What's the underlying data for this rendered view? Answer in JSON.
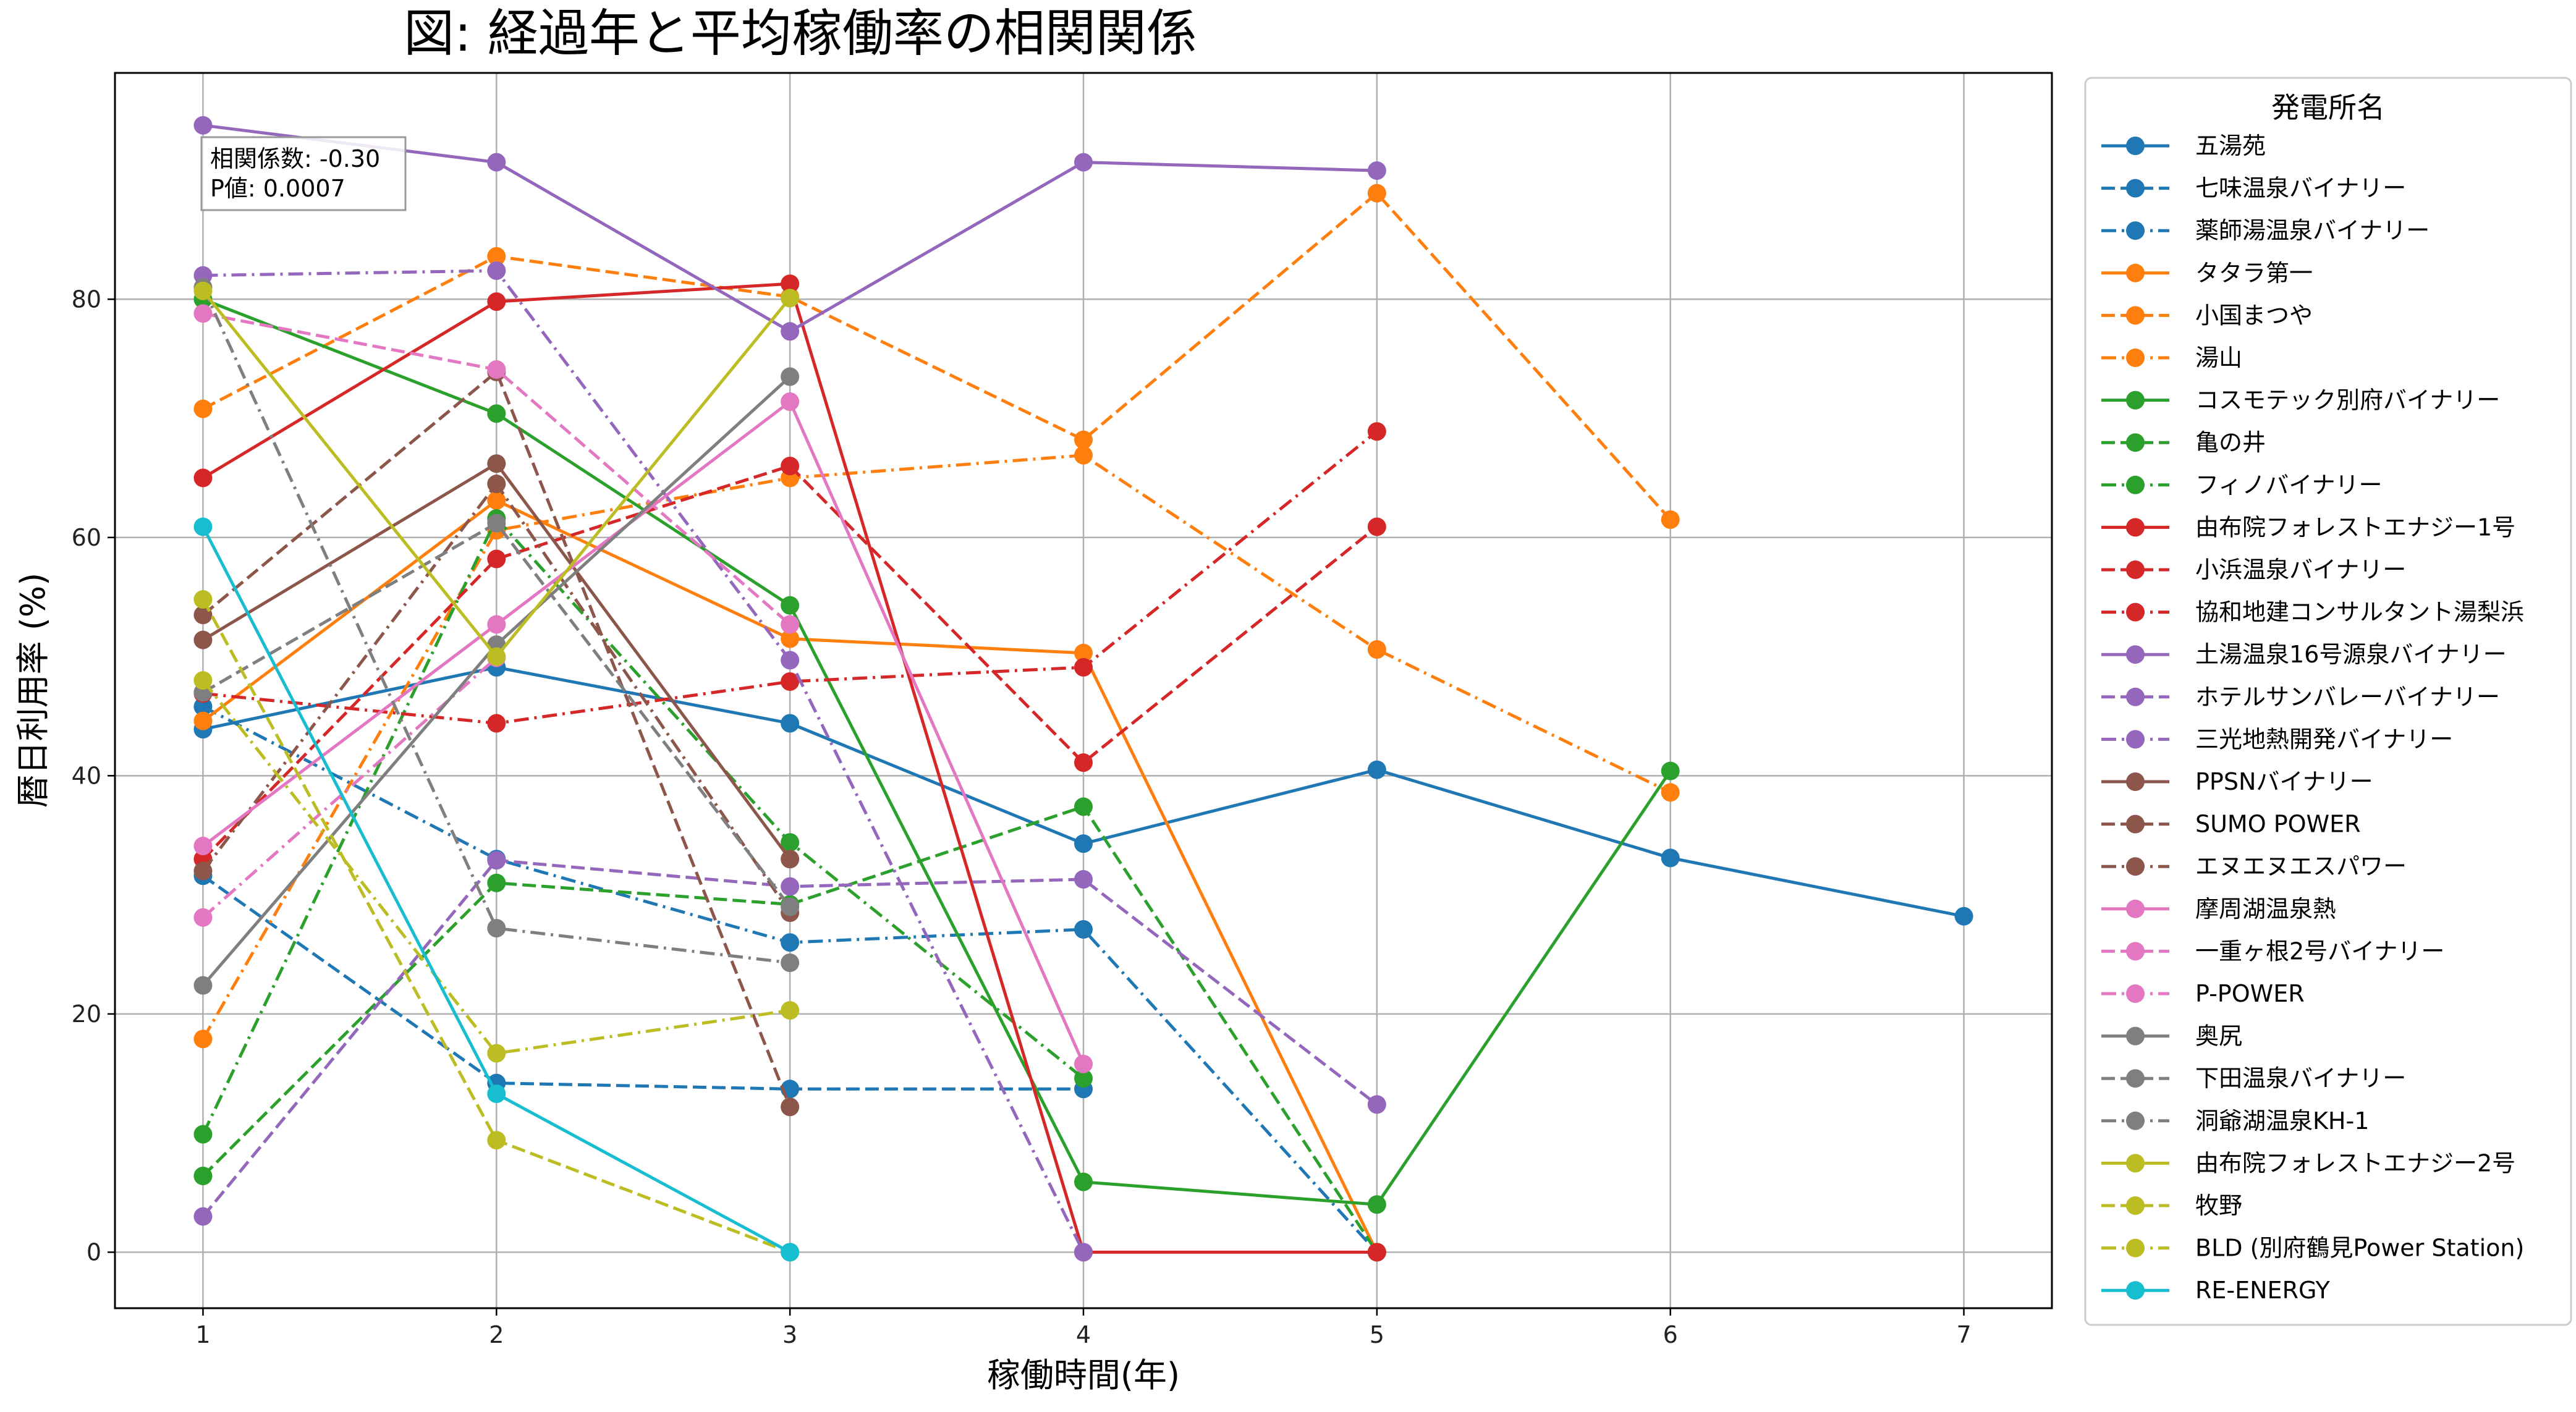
{
  "chart_data": {
    "type": "line",
    "title": "図: 経過年と平均稼働率の相関関係",
    "xlabel": "稼働時間(年)",
    "ylabel": "暦日利用率 (%)",
    "xlim": [
      0.7,
      7.3
    ],
    "ylim": [
      -4.7,
      99
    ],
    "xticks": [
      1,
      2,
      3,
      4,
      5,
      6,
      7
    ],
    "yticks": [
      0,
      20,
      40,
      60,
      80
    ],
    "grid": true,
    "legend_title": "発電所名",
    "legend_position": "outside-right",
    "annotation": {
      "line1": "相関係数: -0.30",
      "line2": "P値: 0.0007"
    },
    "series": [
      {
        "name": "五湯苑",
        "color": "#1f77b4",
        "dash": "solid",
        "points": [
          [
            1,
            43.9
          ],
          [
            2,
            49.1
          ],
          [
            3,
            44.4
          ],
          [
            4,
            34.3
          ],
          [
            5,
            40.5
          ],
          [
            6,
            33.1
          ],
          [
            7,
            28.2
          ]
        ]
      },
      {
        "name": "七味温泉バイナリー",
        "color": "#1f77b4",
        "dash": "dashed",
        "points": [
          [
            1,
            31.6
          ],
          [
            2,
            14.2
          ],
          [
            3,
            13.7
          ],
          [
            4,
            13.7
          ]
        ]
      },
      {
        "name": "薬師湯温泉バイナリー",
        "color": "#1f77b4",
        "dash": "dashdot",
        "points": [
          [
            1,
            45.8
          ],
          [
            2,
            33.0
          ],
          [
            3,
            26.0
          ],
          [
            4,
            27.1
          ],
          [
            5,
            0
          ]
        ]
      },
      {
        "name": "タタラ第一",
        "color": "#ff7f0e",
        "dash": "solid",
        "points": [
          [
            1,
            44.6
          ],
          [
            2,
            63.1
          ],
          [
            3,
            51.5
          ],
          [
            4,
            50.3
          ],
          [
            5,
            0
          ]
        ]
      },
      {
        "name": "小国まつや",
        "color": "#ff7f0e",
        "dash": "dashed",
        "points": [
          [
            1,
            70.8
          ],
          [
            2,
            83.6
          ],
          [
            3,
            80.2
          ],
          [
            4,
            68.2
          ],
          [
            5,
            88.9
          ],
          [
            6,
            61.5
          ]
        ]
      },
      {
        "name": "湯山",
        "color": "#ff7f0e",
        "dash": "dashdot",
        "points": [
          [
            1,
            17.9
          ],
          [
            2,
            60.6
          ],
          [
            3,
            65.0
          ],
          [
            4,
            66.9
          ],
          [
            5,
            50.6
          ],
          [
            6,
            38.6
          ]
        ]
      },
      {
        "name": "コスモテック別府バイナリー",
        "color": "#2ca02c",
        "dash": "solid",
        "points": [
          [
            1,
            80.0
          ],
          [
            2,
            70.4
          ],
          [
            3,
            54.3
          ],
          [
            4,
            5.9
          ],
          [
            5,
            4.0
          ],
          [
            6,
            40.4
          ]
        ]
      },
      {
        "name": "亀の井",
        "color": "#2ca02c",
        "dash": "dashed",
        "points": [
          [
            1,
            6.4
          ],
          [
            2,
            31.0
          ],
          [
            3,
            29.2
          ],
          [
            4,
            37.4
          ],
          [
            5,
            0
          ]
        ]
      },
      {
        "name": "フィノバイナリー",
        "color": "#2ca02c",
        "dash": "dashdot",
        "points": [
          [
            1,
            9.9
          ],
          [
            2,
            61.6
          ],
          [
            3,
            34.4
          ],
          [
            4,
            14.6
          ]
        ]
      },
      {
        "name": "由布院フォレストエナジー1号",
        "color": "#d62728",
        "dash": "solid",
        "points": [
          [
            1,
            65.0
          ],
          [
            2,
            79.8
          ],
          [
            3,
            81.3
          ],
          [
            4,
            0
          ],
          [
            5,
            0
          ]
        ]
      },
      {
        "name": "小浜温泉バイナリー",
        "color": "#d62728",
        "dash": "dashed",
        "points": [
          [
            1,
            33.0
          ],
          [
            2,
            58.2
          ],
          [
            3,
            66.0
          ],
          [
            4,
            41.1
          ],
          [
            5,
            60.9
          ]
        ]
      },
      {
        "name": "協和地建コンサルタント湯梨浜",
        "color": "#d62728",
        "dash": "dashdot",
        "points": [
          [
            1,
            46.9
          ],
          [
            2,
            44.4
          ],
          [
            3,
            47.9
          ],
          [
            4,
            49.1
          ],
          [
            5,
            68.9
          ]
        ]
      },
      {
        "name": "土湯温泉16号源泉バイナリー",
        "color": "#9467bd",
        "dash": "solid",
        "points": [
          [
            1,
            94.6
          ],
          [
            2,
            91.5
          ],
          [
            3,
            77.3
          ],
          [
            4,
            91.5
          ],
          [
            5,
            90.8
          ]
        ]
      },
      {
        "name": "ホテルサンバレーバイナリー",
        "color": "#9467bd",
        "dash": "dashed",
        "points": [
          [
            1,
            3.0
          ],
          [
            2,
            32.9
          ],
          [
            3,
            30.7
          ],
          [
            4,
            31.3
          ],
          [
            5,
            12.4
          ]
        ]
      },
      {
        "name": "三光地熱開発バイナリー",
        "color": "#9467bd",
        "dash": "dashdot",
        "points": [
          [
            1,
            82.0
          ],
          [
            2,
            82.4
          ],
          [
            3,
            49.7
          ],
          [
            4,
            0
          ]
        ]
      },
      {
        "name": "PPSNバイナリー",
        "color": "#8c564b",
        "dash": "solid",
        "points": [
          [
            1,
            51.4
          ],
          [
            2,
            66.2
          ],
          [
            3,
            33.0
          ]
        ]
      },
      {
        "name": "SUMO POWER",
        "color": "#8c564b",
        "dash": "dashed",
        "points": [
          [
            1,
            53.5
          ],
          [
            2,
            73.9
          ],
          [
            3,
            12.2
          ]
        ]
      },
      {
        "name": "エヌエヌエスパワー",
        "color": "#8c564b",
        "dash": "dashdot",
        "points": [
          [
            1,
            32.0
          ],
          [
            2,
            64.5
          ],
          [
            3,
            28.5
          ]
        ]
      },
      {
        "name": "摩周湖温泉熱",
        "color": "#e377c2",
        "dash": "solid",
        "points": [
          [
            1,
            34.1
          ],
          [
            2,
            52.7
          ],
          [
            3,
            71.4
          ],
          [
            4,
            15.8
          ]
        ]
      },
      {
        "name": "一重ヶ根2号バイナリー",
        "color": "#e377c2",
        "dash": "dashed",
        "points": [
          [
            1,
            78.8
          ],
          [
            2,
            74.1
          ],
          [
            3,
            52.7
          ]
        ]
      },
      {
        "name": "P-POWER",
        "color": "#e377c2",
        "dash": "dashdot",
        "points": [
          [
            1,
            28.1
          ],
          [
            2,
            49.9
          ]
        ]
      },
      {
        "name": "奥尻",
        "color": "#7f7f7f",
        "dash": "solid",
        "points": [
          [
            1,
            22.4
          ],
          [
            2,
            51.0
          ],
          [
            3,
            73.5
          ]
        ]
      },
      {
        "name": "下田温泉バイナリー",
        "color": "#7f7f7f",
        "dash": "dashed",
        "points": [
          [
            1,
            47.0
          ],
          [
            2,
            61.2
          ],
          [
            3,
            29.0
          ]
        ]
      },
      {
        "name": "洞爺湖温泉KH-1",
        "color": "#7f7f7f",
        "dash": "dashdot",
        "points": [
          [
            1,
            81.0
          ],
          [
            2,
            27.2
          ],
          [
            3,
            24.3
          ]
        ]
      },
      {
        "name": "由布院フォレストエナジー2号",
        "color": "#bcbd22",
        "dash": "solid",
        "points": [
          [
            1,
            80.7
          ],
          [
            2,
            50.0
          ],
          [
            3,
            80.1
          ]
        ]
      },
      {
        "name": "牧野",
        "color": "#bcbd22",
        "dash": "dashed",
        "points": [
          [
            1,
            54.8
          ],
          [
            2,
            9.4
          ],
          [
            3,
            0
          ]
        ]
      },
      {
        "name": "BLD (別府鶴見Power Station)",
        "color": "#bcbd22",
        "dash": "dashdot",
        "points": [
          [
            1,
            48.0
          ],
          [
            2,
            16.7
          ],
          [
            3,
            20.3
          ]
        ]
      },
      {
        "name": "RE-ENERGY",
        "color": "#17becf",
        "dash": "solid",
        "points": [
          [
            1,
            60.9
          ],
          [
            2,
            13.3
          ],
          [
            3,
            0
          ]
        ]
      }
    ]
  }
}
